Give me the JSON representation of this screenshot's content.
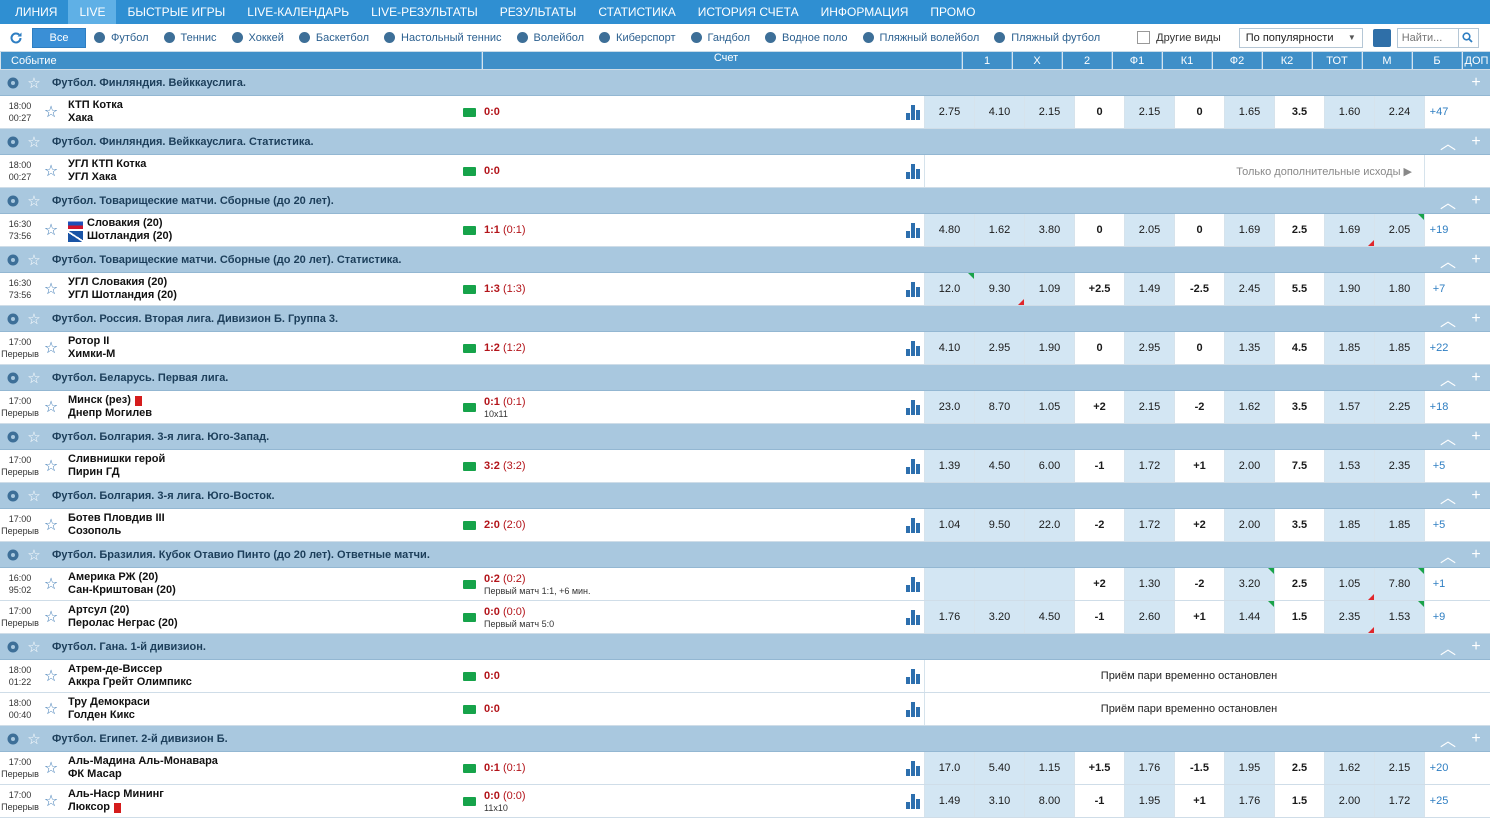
{
  "topnav": [
    "ЛИНИЯ",
    "LIVE",
    "БЫСТРЫЕ ИГРЫ",
    "LIVE-КАЛЕНДАРЬ",
    "LIVE-РЕЗУЛЬТАТЫ",
    "РЕЗУЛЬТАТЫ",
    "СТАТИСТИКА",
    "ИСТОРИЯ СЧЕТА",
    "ИНФОРМАЦИЯ",
    "ПРОМО"
  ],
  "filter": {
    "all_label": "Все",
    "sports": [
      "Футбол",
      "Теннис",
      "Хоккей",
      "Баскетбол",
      "Настольный теннис",
      "Волейбол",
      "Киберспорт",
      "Гандбол",
      "Водное поло",
      "Пляжный волейбол",
      "Пляжный футбол"
    ],
    "other_label": "Другие виды",
    "sort_value": "По популярности",
    "search_placeholder": "Найти..."
  },
  "columns": {
    "event": "Событие",
    "score": "Счет",
    "odds": [
      "1",
      "X",
      "2",
      "Ф1",
      "К1",
      "Ф2",
      "К2",
      "ТОТ",
      "М",
      "Б"
    ],
    "dop": "ДОП"
  },
  "blocks": [
    {
      "league": "Футбол. Финляндия. Вейккауслига.",
      "events": [
        {
          "t1": "18:00",
          "t2": "00:27",
          "home": "КТП Котка",
          "away": "Хака",
          "score": "0:0",
          "half": "",
          "note": "",
          "odds": [
            "2.75",
            "4.10",
            "2.15",
            "0",
            "2.15",
            "0",
            "1.65",
            "3.5",
            "1.60",
            "2.24"
          ],
          "dop": "+47"
        }
      ]
    },
    {
      "league": "Футбол. Финляндия. Вейккауслига. Статистика.",
      "events": [
        {
          "t1": "18:00",
          "t2": "00:27",
          "home": "УГЛ КТП Котка",
          "away": "УГЛ Хака",
          "score": "0:0",
          "half": "",
          "note": "",
          "message": "Только дополнительные исходы ▶",
          "msgright": true
        }
      ]
    },
    {
      "league": "Футбол. Товарищеские матчи. Сборные (до 20 лет).",
      "events": [
        {
          "t1": "16:30",
          "t2": "73:56",
          "home": "Словакия (20)",
          "away": "Шотландия (20)",
          "flags": [
            "sk",
            "sc"
          ],
          "score": "1:1",
          "half": "(0:1)",
          "note": "",
          "odds": [
            "4.80",
            "1.62",
            "3.80",
            "0",
            "2.05",
            "0",
            "1.69",
            "2.5",
            "1.69",
            "2.05"
          ],
          "dop": "+19"
        }
      ]
    },
    {
      "league": "Футбол. Товарищеские матчи. Сборные (до 20 лет). Статистика.",
      "events": [
        {
          "t1": "16:30",
          "t2": "73:56",
          "home": "УГЛ Словакия (20)",
          "away": "УГЛ Шотландия (20)",
          "score": "1:3",
          "half": "(1:3)",
          "note": "",
          "odds": [
            "12.0",
            "9.30",
            "1.09",
            "+2.5",
            "1.49",
            "-2.5",
            "2.45",
            "5.5",
            "1.90",
            "1.80"
          ],
          "dop": "+7"
        }
      ]
    },
    {
      "league": "Футбол. Россия. Вторая лига. Дивизион Б. Группа 3.",
      "events": [
        {
          "t1": "17:00",
          "t2": "Перерыв",
          "home": "Ротор II",
          "away": "Химки-М",
          "score": "1:2",
          "half": "(1:2)",
          "note": "",
          "odds": [
            "4.10",
            "2.95",
            "1.90",
            "0",
            "2.95",
            "0",
            "1.35",
            "4.5",
            "1.85",
            "1.85"
          ],
          "dop": "+22"
        }
      ]
    },
    {
      "league": "Футбол. Беларусь. Первая лига.",
      "events": [
        {
          "t1": "17:00",
          "t2": "Перерыв",
          "home": "Минск (рез)",
          "away": "Днепр Могилев",
          "redcard": "home",
          "score": "0:1",
          "half": "(0:1)",
          "note": "10x11",
          "odds": [
            "23.0",
            "8.70",
            "1.05",
            "+2",
            "2.15",
            "-2",
            "1.62",
            "3.5",
            "1.57",
            "2.25"
          ],
          "dop": "+18"
        }
      ]
    },
    {
      "league": "Футбол. Болгария. 3-я лига. Юго-Запад.",
      "events": [
        {
          "t1": "17:00",
          "t2": "Перерыв",
          "home": "Сливнишки герой",
          "away": "Пирин ГД",
          "score": "3:2",
          "half": "(3:2)",
          "note": "",
          "odds": [
            "1.39",
            "4.50",
            "6.00",
            "-1",
            "1.72",
            "+1",
            "2.00",
            "7.5",
            "1.53",
            "2.35"
          ],
          "dop": "+5"
        }
      ]
    },
    {
      "league": "Футбол. Болгария. 3-я лига. Юго-Восток.",
      "events": [
        {
          "t1": "17:00",
          "t2": "Перерыв",
          "home": "Ботев Пловдив III",
          "away": "Созополь",
          "score": "2:0",
          "half": "(2:0)",
          "note": "",
          "odds": [
            "1.04",
            "9.50",
            "22.0",
            "-2",
            "1.72",
            "+2",
            "2.00",
            "3.5",
            "1.85",
            "1.85"
          ],
          "dop": "+5"
        }
      ]
    },
    {
      "league": "Футбол. Бразилия. Кубок Отавио Пинто (до 20 лет). Ответные матчи.",
      "events": [
        {
          "t1": "16:00",
          "t2": "95:02",
          "home": "Америка РЖ (20)",
          "away": "Сан-Криштован (20)",
          "score": "0:2",
          "half": "(0:2)",
          "note": "Первый матч 1:1, +6 мин.",
          "odds": [
            "",
            "",
            "",
            "+2",
            "1.30",
            "-2",
            "3.20",
            "2.5",
            "1.05",
            "7.80"
          ],
          "dop": "+1"
        },
        {
          "t1": "17:00",
          "t2": "Перерыв",
          "home": "Артсул (20)",
          "away": "Перолас Неграс (20)",
          "score": "0:0",
          "half": "(0:0)",
          "note": "Первый матч 5:0",
          "odds": [
            "1.76",
            "3.20",
            "4.50",
            "-1",
            "2.60",
            "+1",
            "1.44",
            "1.5",
            "2.35",
            "1.53"
          ],
          "dop": "+9"
        }
      ]
    },
    {
      "league": "Футбол. Гана. 1-й дивизион.",
      "events": [
        {
          "t1": "18:00",
          "t2": "01:22",
          "home": "Атрем-де-Виссер",
          "away": "Аккра Грейт Олимпикс",
          "score": "0:0",
          "half": "",
          "note": "",
          "message": "Приём пари временно остановлен"
        },
        {
          "t1": "18:00",
          "t2": "00:40",
          "home": "Тру Демокраси",
          "away": "Голден Кикс",
          "score": "0:0",
          "half": "",
          "note": "",
          "message": "Приём пари временно остановлен"
        }
      ]
    },
    {
      "league": "Футбол. Египет. 2-й дивизион Б.",
      "events": [
        {
          "t1": "17:00",
          "t2": "Перерыв",
          "home": "Аль-Мадина Аль-Монавара",
          "away": "ФК Масар",
          "score": "0:1",
          "half": "(0:1)",
          "note": "",
          "odds": [
            "17.0",
            "5.40",
            "1.15",
            "+1.5",
            "1.76",
            "-1.5",
            "1.95",
            "2.5",
            "1.62",
            "2.15"
          ],
          "dop": "+20"
        },
        {
          "t1": "17:00",
          "t2": "Перерыв",
          "home": "Аль-Наср Мининг",
          "away": "Люксор",
          "redcard": "away",
          "score": "0:0",
          "half": "(0:0)",
          "note": "11x10",
          "odds": [
            "1.49",
            "3.10",
            "8.00",
            "-1",
            "1.95",
            "+1",
            "1.76",
            "1.5",
            "2.00",
            "1.72"
          ],
          "dop": "+25"
        }
      ]
    }
  ]
}
